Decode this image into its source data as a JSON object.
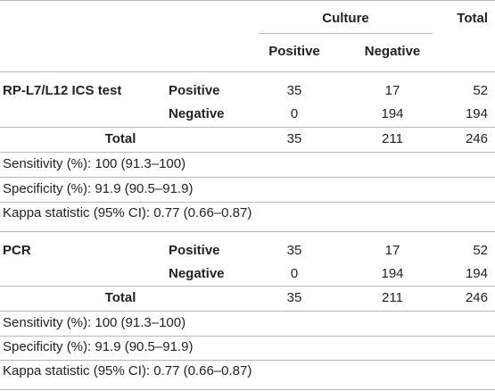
{
  "header": {
    "culture": "Culture",
    "total": "Total",
    "positive": "Positive",
    "negative": "Negative"
  },
  "sections": [
    {
      "test": "RP-L7/L12 ICS test",
      "rows": [
        {
          "label": "Positive",
          "pos": "35",
          "neg": "17",
          "total": "52"
        },
        {
          "label": "Negative",
          "pos": "0",
          "neg": "194",
          "total": "194"
        }
      ],
      "total_row": {
        "label": "Total",
        "pos": "35",
        "neg": "211",
        "total": "246"
      },
      "stats": [
        "Sensitivity (%): 100 (91.3–100)",
        "Specificity (%): 91.9 (90.5–91.9)",
        "Kappa statistic (95% CI): 0.77 (0.66–0.87)"
      ]
    },
    {
      "test": "PCR",
      "rows": [
        {
          "label": "Positive",
          "pos": "35",
          "neg": "17",
          "total": "52"
        },
        {
          "label": "Negative",
          "pos": "0",
          "neg": "194",
          "total": "194"
        }
      ],
      "total_row": {
        "label": "Total",
        "pos": "35",
        "neg": "211",
        "total": "246"
      },
      "stats": [
        "Sensitivity (%): 100 (91.3–100)",
        "Specificity (%): 91.9 (90.5–91.9)",
        "Kappa statistic (95% CI): 0.77 (0.66–0.87)"
      ]
    }
  ]
}
